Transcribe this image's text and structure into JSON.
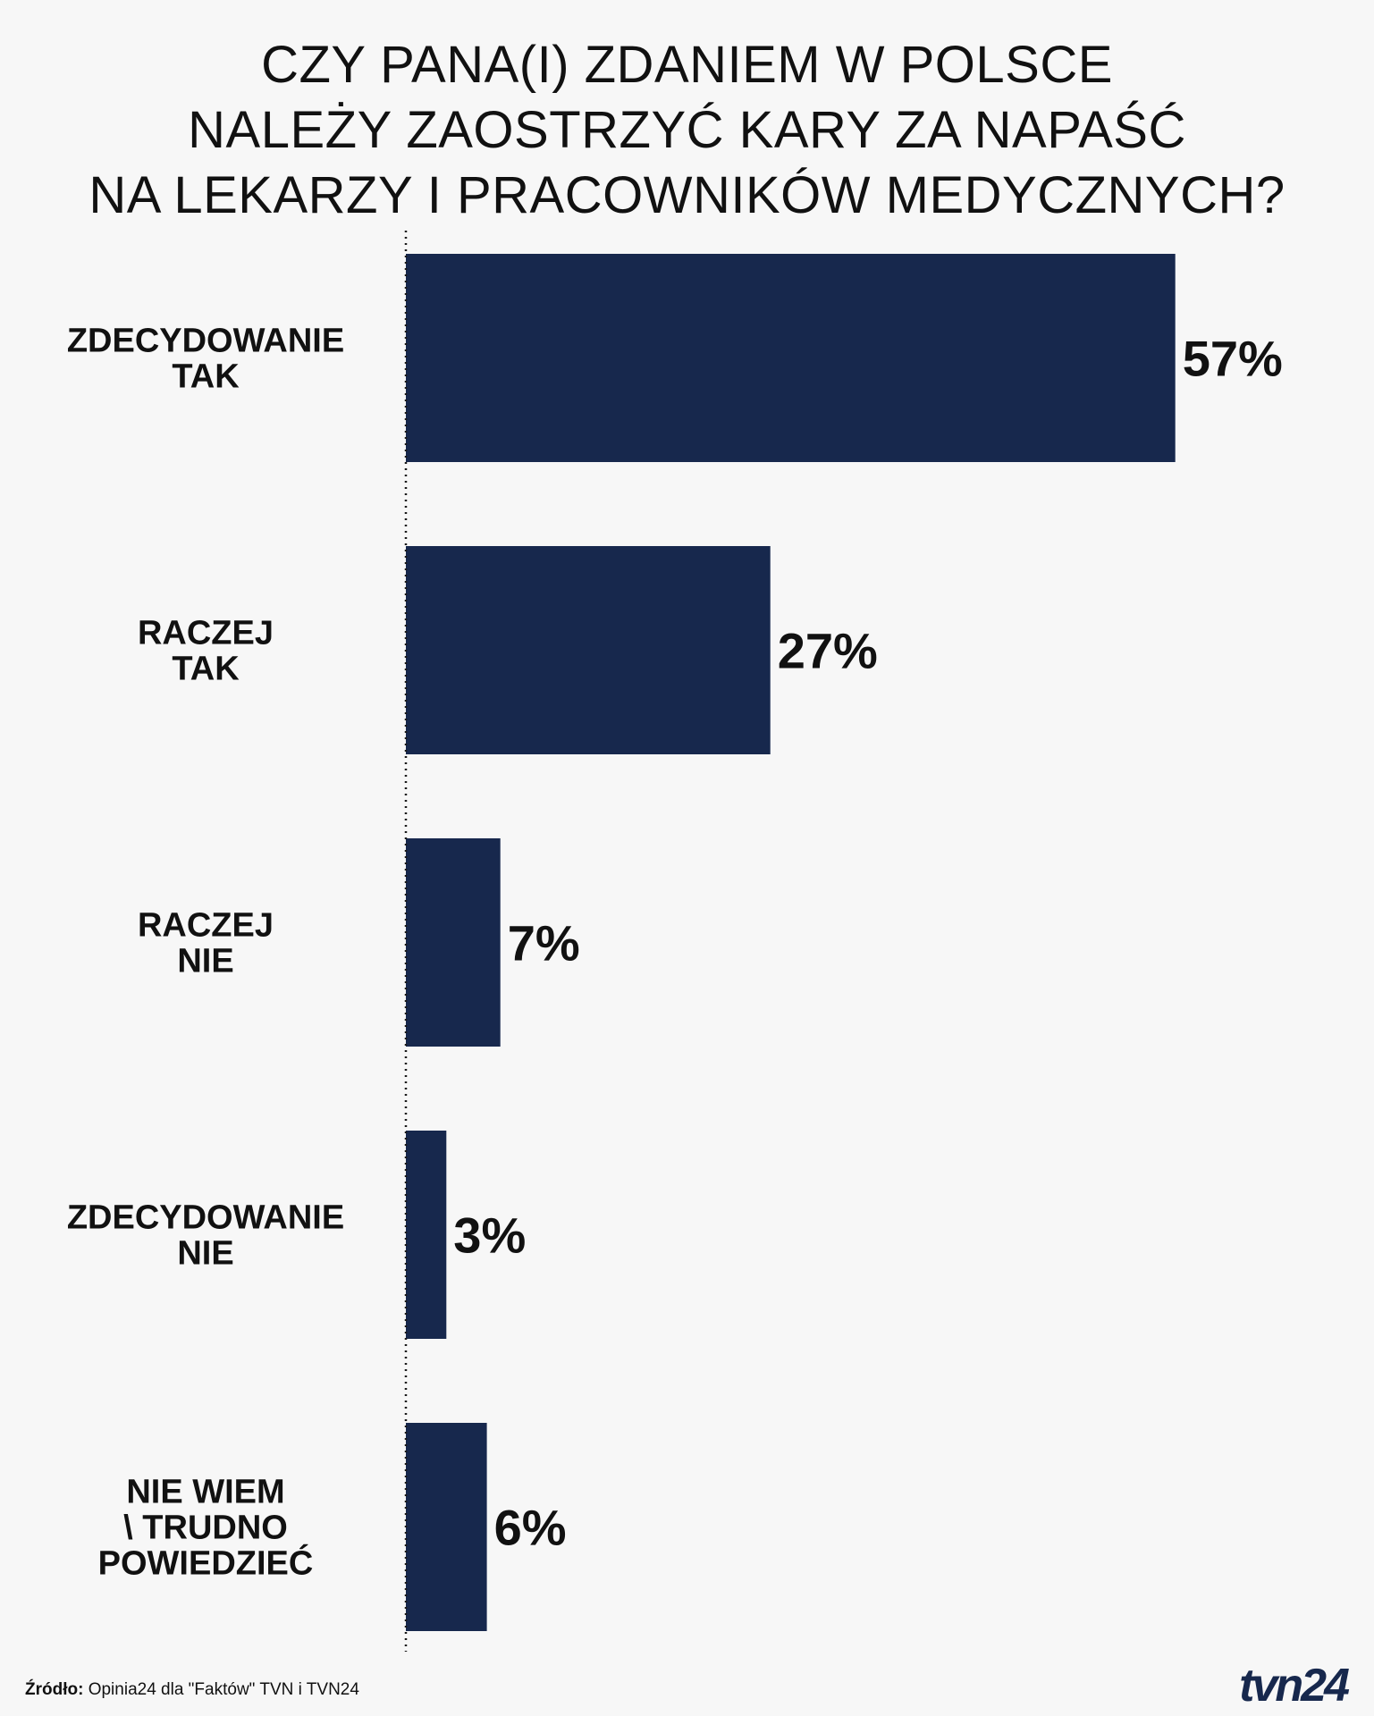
{
  "chart_data": {
    "type": "bar",
    "orientation": "horizontal",
    "title_lines": [
      "CZY PANA(I) ZDANIEM W POLSCE",
      "NALEŻY ZAOSTRZYĆ KARY ZA NAPAŚĆ",
      "NA LEKARZY I PRACOWNIKÓW MEDYCZNYCH?"
    ],
    "categories": [
      [
        "ZDECYDOWANIE",
        "TAK"
      ],
      [
        "RACZEJ",
        "TAK"
      ],
      [
        "RACZEJ",
        "NIE"
      ],
      [
        "ZDECYDOWANIE",
        "NIE"
      ],
      [
        "NIE WIEM",
        "\\ TRUDNO",
        "POWIEDZIEĆ"
      ]
    ],
    "values": [
      57,
      27,
      7,
      3,
      6
    ],
    "value_labels": [
      "57%",
      "27%",
      "7%",
      "3%",
      "6%"
    ],
    "unit": "%",
    "xlim": [
      0,
      100
    ],
    "grid": false,
    "axis_line": "dotted",
    "bar_color": "#17284d"
  },
  "footer": {
    "source_prefix": "Źródło:",
    "source_text": " Opinia24 dla \"Faktów\" TVN i TVN24"
  },
  "logo": {
    "text": "tvn24"
  }
}
